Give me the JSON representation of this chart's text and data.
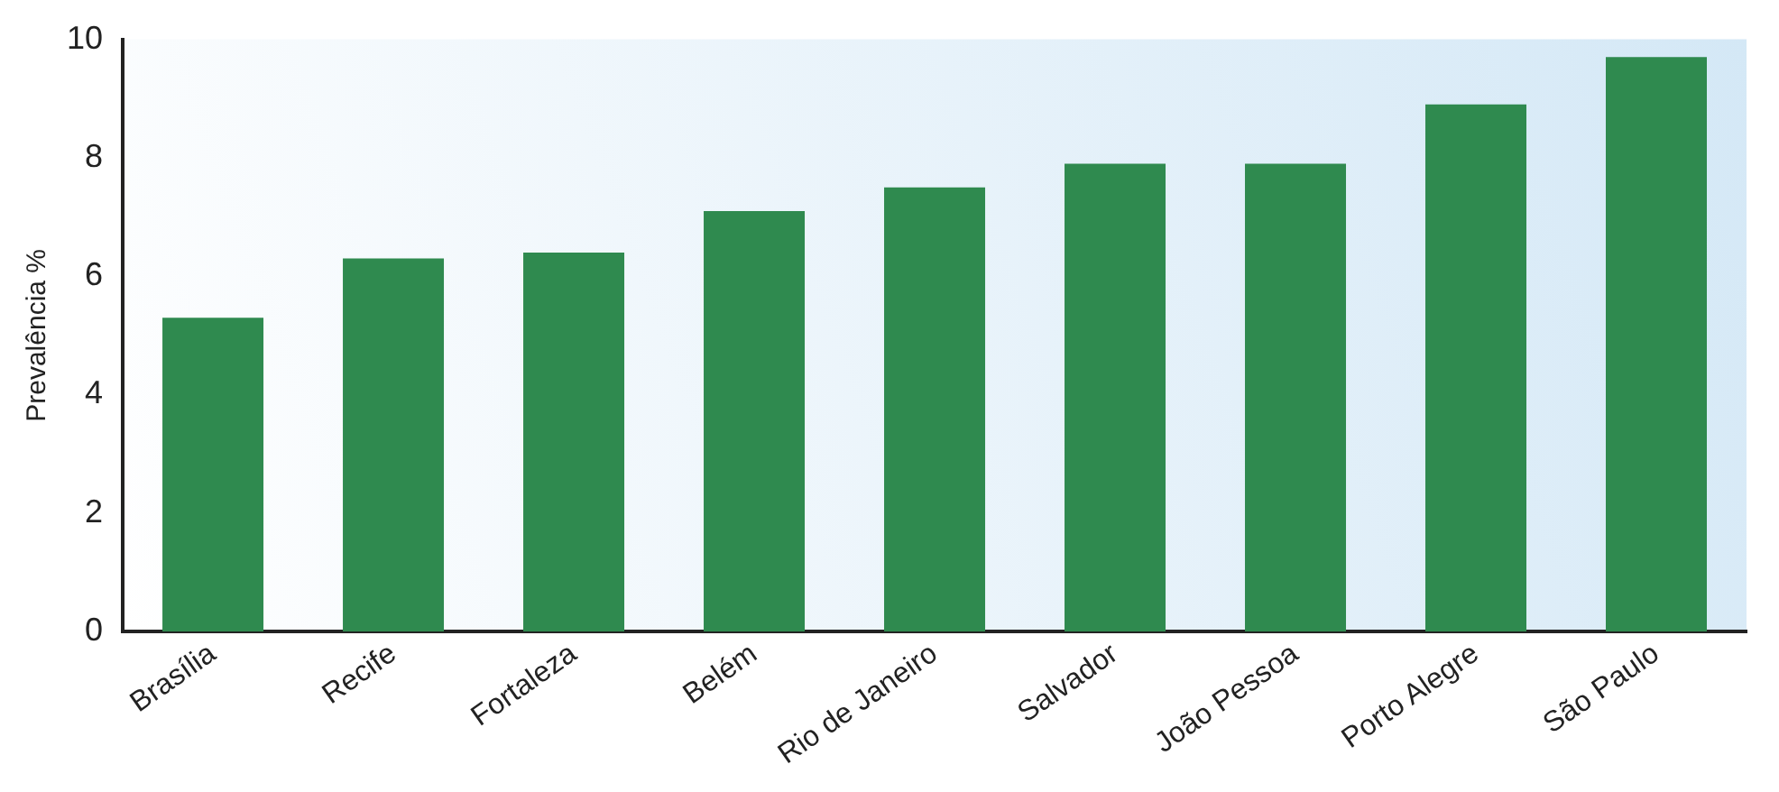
{
  "chart_data": {
    "type": "bar",
    "ylabel": "Prevalência %",
    "categories": [
      "Brasília",
      "Recife",
      "Fortaleza",
      "Belém",
      "Rio de Janeiro",
      "Salvador",
      "João Pessoa",
      "Porto Alegre",
      "São Paulo"
    ],
    "values": [
      5.3,
      6.3,
      6.4,
      7.1,
      7.5,
      7.9,
      7.9,
      8.9,
      9.7
    ],
    "color": "#2f8a4f",
    "ylim": [
      0,
      10
    ],
    "yticks": [
      0,
      2,
      4,
      6,
      8,
      10
    ],
    "grid": false
  }
}
